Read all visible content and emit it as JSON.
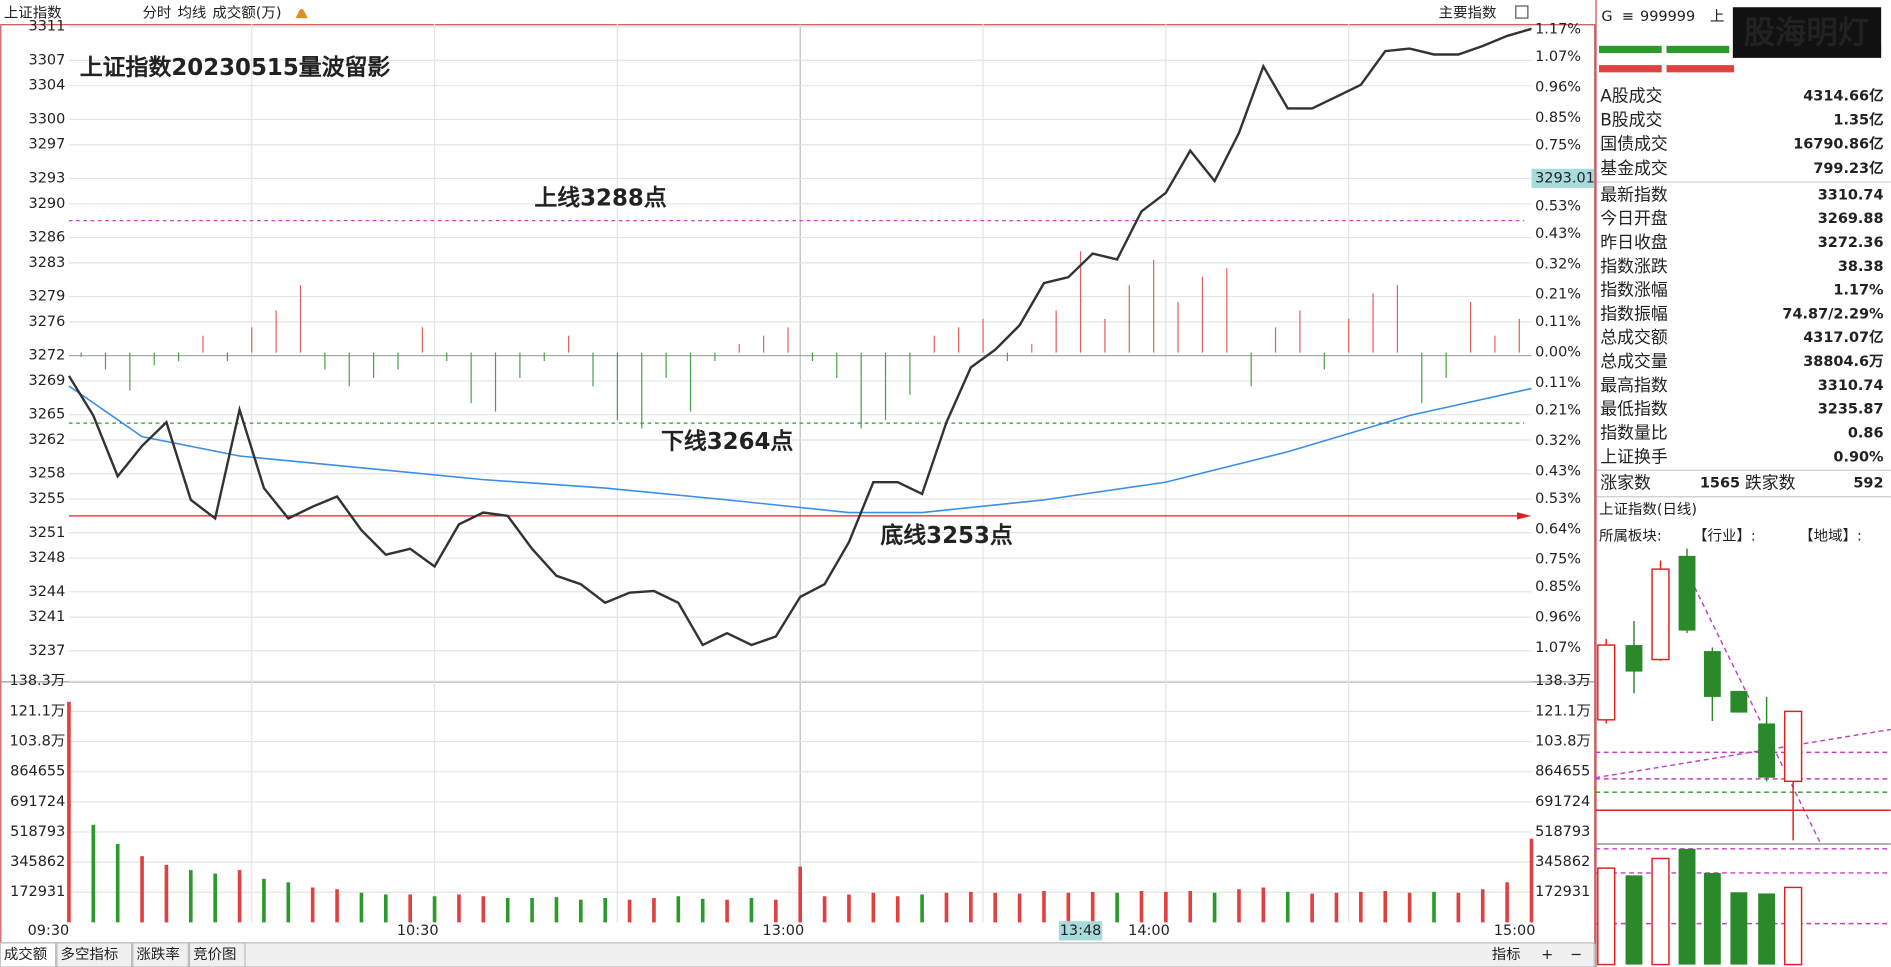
{
  "toolbar": [
    "上证指数",
    "分时",
    "均线",
    "成交额(万)"
  ],
  "top_right": "主要指数",
  "chart_data": {
    "type": "line",
    "title": "上证指数20230515量波留影",
    "ylim": [
      3233.4,
      3311.3
    ],
    "yticks": [
      3311,
      3307,
      3304,
      3300,
      3297,
      3293,
      3290,
      3286,
      3283,
      3279,
      3276,
      3272,
      3269,
      3265,
      3262,
      3258,
      3255,
      3251,
      3248,
      3244,
      3241,
      3237
    ],
    "y2ticks": [
      {
        "value": 1.17,
        "label": "1.17%"
      },
      {
        "value": 1.07,
        "label": "1.07%"
      },
      {
        "value": 0.96,
        "label": "0.96%"
      },
      {
        "value": 0.85,
        "label": "0.85%"
      },
      {
        "value": 0.75,
        "label": "0.75%"
      },
      {
        "value": 0.64,
        "label": "0.64%"
      },
      {
        "value": 0.53,
        "label": "0.53%"
      },
      {
        "value": 0.43,
        "label": "0.43%"
      },
      {
        "value": 0.32,
        "label": "0.32%"
      },
      {
        "value": 0.21,
        "label": "0.21%"
      },
      {
        "value": 0.11,
        "label": "0.11%"
      },
      {
        "value": 0,
        "label": "0.00%"
      },
      {
        "value": -0.11,
        "label": "0.11%"
      },
      {
        "value": -0.21,
        "label": "0.21%"
      },
      {
        "value": -0.32,
        "label": "0.32%"
      },
      {
        "value": -0.43,
        "label": "0.43%"
      },
      {
        "value": -0.53,
        "label": "0.53%"
      },
      {
        "value": -0.64,
        "label": "0.64%"
      },
      {
        "value": -0.75,
        "label": "0.75%"
      },
      {
        "value": -0.85,
        "label": "0.85%"
      },
      {
        "value": -0.96,
        "label": "0.96%"
      },
      {
        "value": -1.07,
        "label": "1.07%"
      }
    ],
    "xlim": [
      0,
      240
    ],
    "xticks": [
      {
        "value": 0,
        "label": "09:30"
      },
      {
        "value": 60,
        "label": "10:30"
      },
      {
        "value": 120,
        "label": "13:00"
      },
      {
        "value": 180,
        "label": "14:00"
      },
      {
        "value": 240,
        "label": "15:00"
      }
    ],
    "series": [
      {
        "name": "上证指数",
        "color": "#333333",
        "x": [
          0,
          4,
          8,
          12,
          16,
          20,
          24,
          28,
          32,
          36,
          40,
          44,
          48,
          52,
          56,
          60,
          64,
          68,
          72,
          76,
          80,
          84,
          88,
          92,
          96,
          100,
          104,
          108,
          112,
          116,
          120,
          124,
          128,
          132,
          136,
          140,
          144,
          148,
          152,
          156,
          160,
          164,
          168,
          172,
          176,
          180,
          184,
          188,
          192,
          196,
          200,
          204,
          208,
          212,
          216,
          220,
          224,
          228,
          232,
          236,
          240
        ],
        "values": [
          3269.6,
          3264.9,
          3257.7,
          3261.3,
          3264.1,
          3254.9,
          3252.7,
          3265.6,
          3256.3,
          3252.7,
          3254.1,
          3255.3,
          3251.3,
          3248.4,
          3249.1,
          3247.0,
          3252.0,
          3253.4,
          3253.0,
          3249.1,
          3245.9,
          3244.9,
          3242.7,
          3243.9,
          3244.1,
          3242.7,
          3237.7,
          3239.1,
          3237.7,
          3238.7,
          3243.4,
          3244.9,
          3249.9,
          3257.0,
          3257.0,
          3255.6,
          3264.1,
          3270.6,
          3272.7,
          3275.6,
          3280.6,
          3281.3,
          3284.1,
          3283.4,
          3289.1,
          3291.3,
          3296.3,
          3292.7,
          3298.4,
          3306.3,
          3301.3,
          3301.3,
          3302.7,
          3304.1,
          3308.1,
          3308.4,
          3307.7,
          3307.7,
          3308.7,
          3309.9,
          3310.74
        ]
      },
      {
        "name": "均线",
        "color": "#3a8ee6",
        "x": [
          0,
          12,
          28,
          48,
          68,
          88,
          108,
          128,
          140,
          160,
          180,
          200,
          220,
          240
        ],
        "values": [
          3268.4,
          3262.4,
          3260.1,
          3258.7,
          3257.3,
          3256.3,
          3254.9,
          3253.4,
          3253.4,
          3254.9,
          3257.0,
          3260.6,
          3264.9,
          3268.1
        ]
      }
    ],
    "updown": {
      "x": [
        2,
        6,
        10,
        14,
        18,
        22,
        26,
        30,
        34,
        38,
        42,
        46,
        50,
        54,
        58,
        62,
        66,
        70,
        74,
        78,
        82,
        86,
        90,
        94,
        98,
        102,
        106,
        110,
        114,
        118,
        122,
        126,
        130,
        134,
        138,
        142,
        146,
        150,
        154,
        158,
        162,
        166,
        170,
        174,
        178,
        182,
        186,
        190,
        194,
        198,
        202,
        206,
        210,
        214,
        218,
        222,
        226,
        230,
        234,
        238
      ],
      "values": [
        -0.5,
        -2,
        -4.5,
        -1.5,
        -1,
        2,
        -1,
        3,
        5,
        8,
        -2,
        -4,
        -3,
        -2,
        3,
        -1,
        -6,
        -7,
        -3,
        -1,
        2,
        -4,
        -8,
        -9,
        -3,
        -7,
        -1,
        1,
        2,
        3,
        -1,
        -3,
        -9,
        -8,
        -5,
        2,
        3,
        4,
        -1,
        1,
        5,
        12,
        4,
        8,
        11,
        6,
        9,
        10,
        -4,
        3,
        5,
        -2,
        4,
        7,
        8,
        -6,
        -3,
        6,
        2,
        4
      ]
    },
    "ref_lines": [
      {
        "label": "上线3288点",
        "value": 3288,
        "color": "#d040d0",
        "dash": true
      },
      {
        "label": "下线3264点",
        "value": 3264,
        "color": "#2a9a2a",
        "dash": true
      },
      {
        "label": "底线3253点",
        "value": 3253,
        "color": "#e02020",
        "dash": false
      }
    ],
    "cursor_price": 3293.01,
    "cursor_time": "13:48",
    "volume": {
      "ylim": [
        0,
        1383448
      ],
      "yticks": [
        {
          "value": 1383448,
          "label": "138.3万"
        },
        {
          "value": 1210517,
          "label": "121.1万"
        },
        {
          "value": 1037586,
          "label": "103.8万"
        },
        864655,
        691724,
        518793,
        345862,
        172931
      ],
      "x": [
        0,
        4,
        8,
        12,
        16,
        20,
        24,
        28,
        32,
        36,
        40,
        44,
        48,
        52,
        56,
        60,
        64,
        68,
        72,
        76,
        80,
        84,
        88,
        92,
        96,
        100,
        104,
        108,
        112,
        116,
        120,
        124,
        128,
        132,
        136,
        140,
        144,
        148,
        152,
        156,
        160,
        164,
        168,
        172,
        176,
        180,
        184,
        188,
        192,
        196,
        200,
        204,
        208,
        212,
        216,
        220,
        224,
        228,
        232,
        236,
        240
      ],
      "values": [
        1265800,
        560000,
        450000,
        380000,
        330000,
        300000,
        280000,
        300000,
        250000,
        230000,
        200000,
        190000,
        170000,
        160000,
        160000,
        150000,
        160000,
        150000,
        140000,
        140000,
        145000,
        130000,
        140000,
        130000,
        140000,
        150000,
        135000,
        130000,
        140000,
        130000,
        320000,
        150000,
        160000,
        170000,
        150000,
        160000,
        170000,
        175000,
        170000,
        165000,
        180000,
        170000,
        175000,
        170000,
        180000,
        175000,
        180000,
        170000,
        190000,
        200000,
        175000,
        165000,
        170000,
        175000,
        180000,
        170000,
        175000,
        170000,
        190000,
        230000,
        480000
      ]
    }
  },
  "quote": {
    "code": "999999",
    "prefix": "G",
    "suffix": "上",
    "logo": "股海明灯",
    "rows": [
      {
        "label": "A股成交",
        "value": "4314.66亿",
        "color": "#222"
      },
      {
        "label": "B股成交",
        "value": "1.35亿",
        "color": "#222"
      },
      {
        "label": "国债成交",
        "value": "16790.86亿",
        "color": "#222"
      },
      {
        "label": "基金成交",
        "value": "799.23亿",
        "color": "#222"
      },
      {
        "label": "最新指数",
        "value": 3310.74,
        "color": "#e02020"
      },
      {
        "label": "今日开盘",
        "value": 3269.88,
        "color": "#1f8f1f"
      },
      {
        "label": "昨日收盘",
        "value": 3272.36,
        "color": "#222"
      },
      {
        "label": "指数涨跌",
        "value": 38.38,
        "color": "#e02020"
      },
      {
        "label": "指数涨幅",
        "value": "1.17%",
        "color": "#e02020"
      },
      {
        "label": "指数振幅",
        "value": "74.87/2.29%",
        "color": "#222"
      },
      {
        "label": "总成交额",
        "value": "4317.07亿",
        "color": "#222"
      },
      {
        "label": "总成交量",
        "value": "38804.6万",
        "color": "#222"
      },
      {
        "label": "最高指数",
        "value": 3310.74,
        "color": "#e02020"
      },
      {
        "label": "最低指数",
        "value": 3235.87,
        "color": "#1f8f1f"
      },
      {
        "label": "指数量比",
        "value": 0.86,
        "color": "#e02020"
      },
      {
        "label": "上证换手",
        "value": "0.90%",
        "color": "#222"
      }
    ],
    "breadth": [
      {
        "label": "涨家数",
        "value": 1565,
        "color": "#e02020"
      },
      {
        "label": "跌家数",
        "value": 592,
        "color": "#1f8f1f"
      }
    ],
    "daily_title": "上证指数(日线)",
    "sector": [
      "所属板块:",
      "【行业】:",
      "【地域】:"
    ]
  },
  "tabs": [
    "成交额",
    "多空指标",
    "涨跌率",
    "竞价图"
  ],
  "bottom_right": [
    "指标",
    "+",
    "−"
  ]
}
